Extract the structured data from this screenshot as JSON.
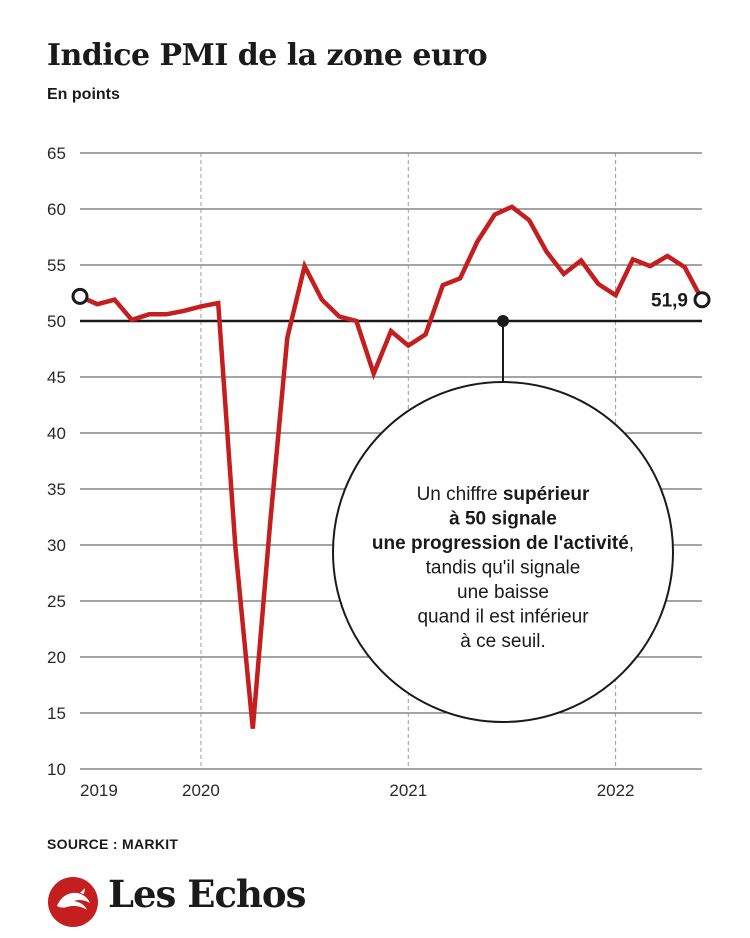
{
  "title": "Indice PMI de la zone euro",
  "subtitle": "En points",
  "source": "SOURCE : MARKIT",
  "brand": "Les Echos",
  "colors": {
    "line": "#c41e1e",
    "grid": "#4a4a4a",
    "text": "#1a1a1a",
    "logo": "#c41e1e"
  },
  "callout": {
    "lines": [
      [
        {
          "t": "Un chiffre ",
          "b": false
        },
        {
          "t": "supérieur",
          "b": true
        }
      ],
      [
        {
          "t": "à 50 signale",
          "b": true
        }
      ],
      [
        {
          "t": "une progression de l'activité",
          "b": true
        },
        {
          "t": ",",
          "b": false
        }
      ],
      [
        {
          "t": "tandis qu'il signale",
          "b": false
        }
      ],
      [
        {
          "t": "une baisse",
          "b": false
        }
      ],
      [
        {
          "t": "quand il est inférieur",
          "b": false
        }
      ],
      [
        {
          "t": "à ce seuil.",
          "b": false
        }
      ]
    ]
  },
  "chart_data": {
    "type": "line",
    "title": "Indice PMI de la zone euro",
    "ylabel": "En points",
    "ylim": [
      10,
      65
    ],
    "yticks": [
      65,
      60,
      55,
      50,
      45,
      40,
      35,
      30,
      25,
      20,
      15,
      10
    ],
    "xlim": [
      "2019-06",
      "2022-06"
    ],
    "xticks": [
      "2019",
      "2020",
      "2021",
      "2022"
    ],
    "reference_line": 50,
    "last_value_label": "51,9",
    "series": [
      {
        "x": [
          "2019-06",
          "2019-07",
          "2019-08",
          "2019-09",
          "2019-10",
          "2019-11",
          "2019-12",
          "2020-01",
          "2020-02",
          "2020-03",
          "2020-04",
          "2020-05",
          "2020-06",
          "2020-07",
          "2020-08",
          "2020-09",
          "2020-10",
          "2020-11",
          "2020-12",
          "2021-01",
          "2021-02",
          "2021-03",
          "2021-04",
          "2021-05",
          "2021-06",
          "2021-07",
          "2021-08",
          "2021-09",
          "2021-10",
          "2021-11",
          "2021-12",
          "2022-01",
          "2022-02",
          "2022-03",
          "2022-04",
          "2022-05",
          "2022-06"
        ],
        "values": [
          52.2,
          51.5,
          51.9,
          50.1,
          50.6,
          50.6,
          50.9,
          51.3,
          51.6,
          29.7,
          13.6,
          31.9,
          48.5,
          54.9,
          51.9,
          50.4,
          50.0,
          45.3,
          49.1,
          47.8,
          48.8,
          53.2,
          53.8,
          57.1,
          59.5,
          60.2,
          59.0,
          56.2,
          54.2,
          55.4,
          53.3,
          52.3,
          55.5,
          54.9,
          55.8,
          54.8,
          51.9
        ]
      }
    ]
  }
}
